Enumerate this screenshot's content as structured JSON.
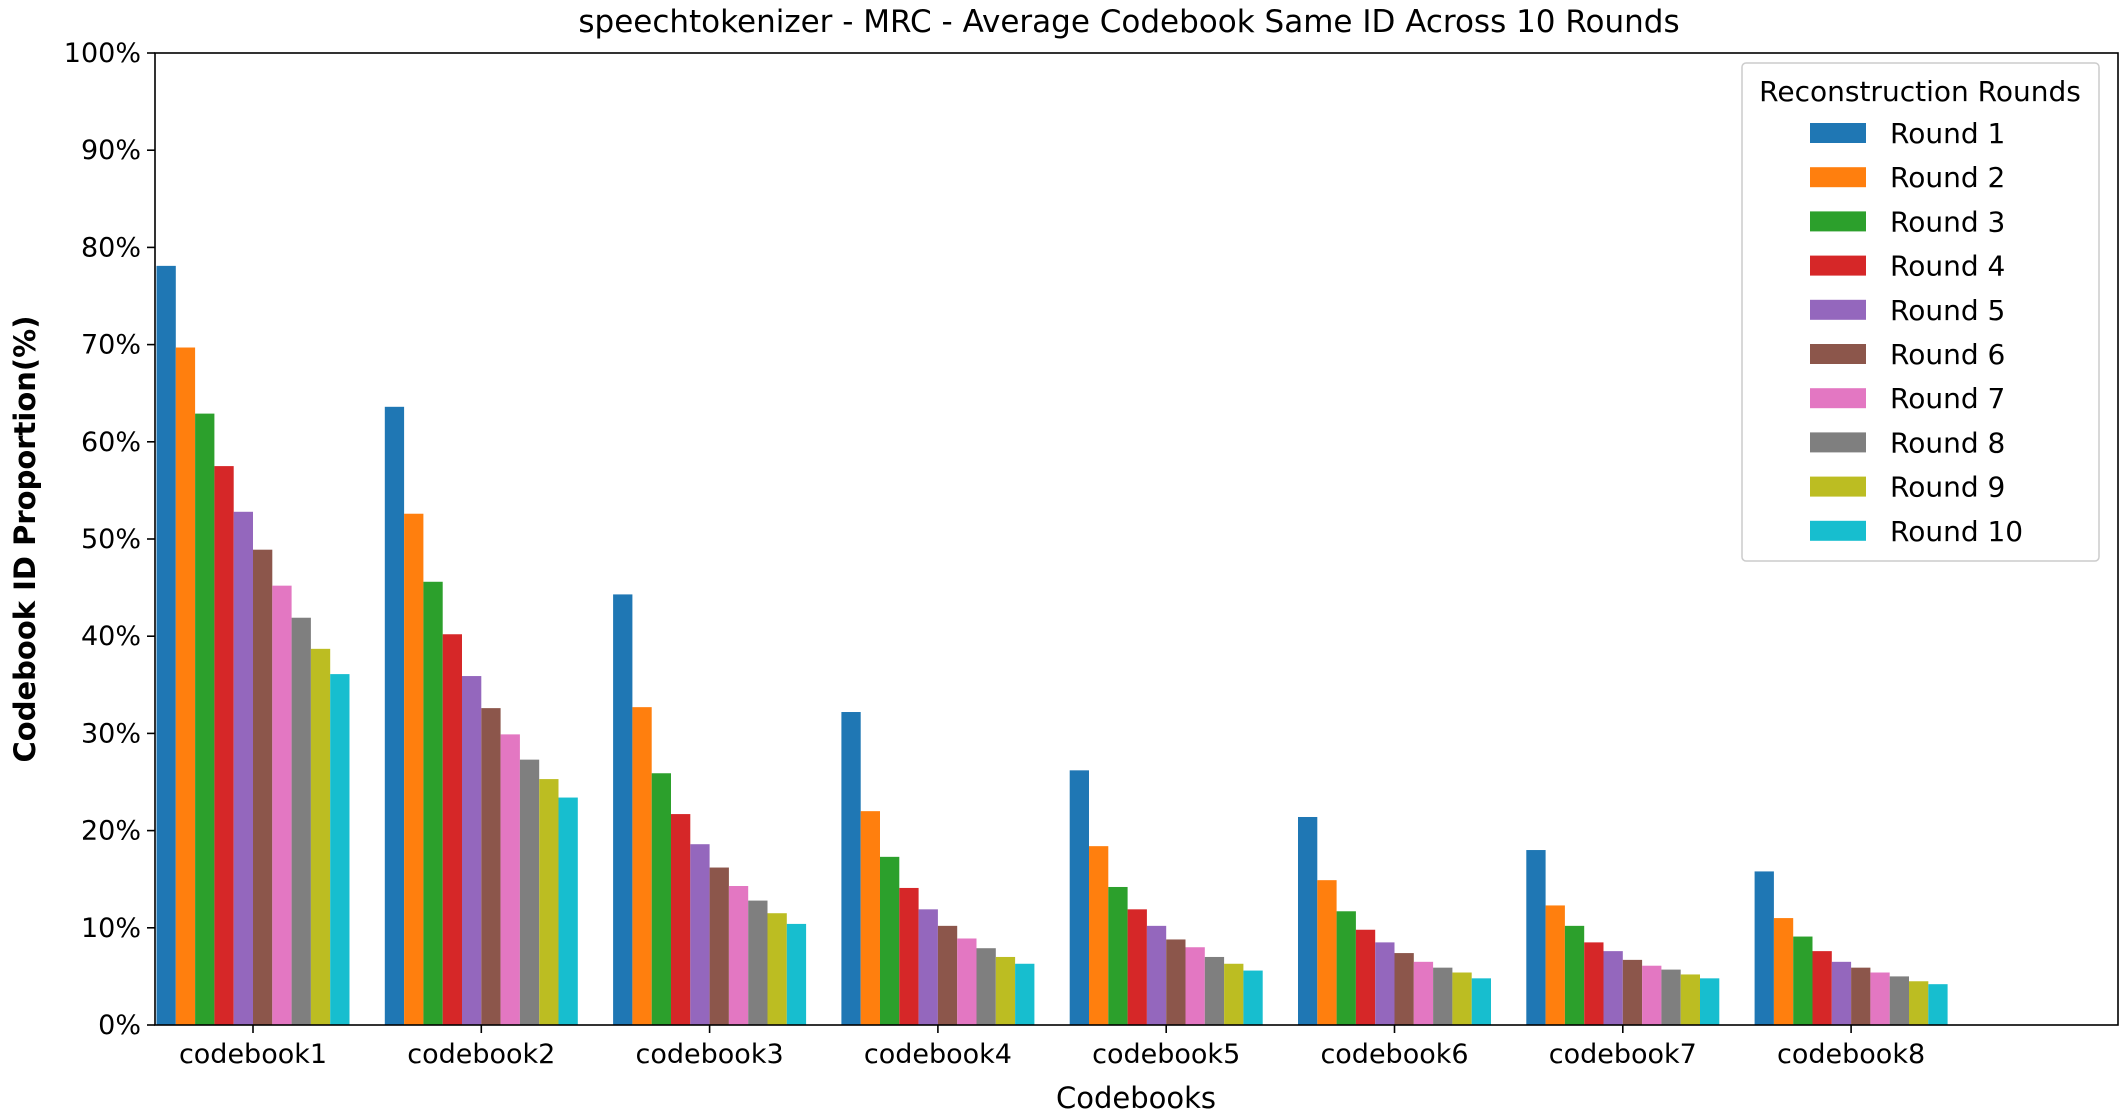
{
  "chart_data": {
    "type": "bar",
    "title": "speechtokenizer - MRC - Average Codebook Same ID Across 10 Rounds",
    "xlabel": "Codebooks",
    "ylabel": "Codebook ID Proportion(%)",
    "ylim": [
      0,
      100
    ],
    "yticks": [
      "0%",
      "10%",
      "20%",
      "30%",
      "40%",
      "50%",
      "60%",
      "70%",
      "80%",
      "90%",
      "100%"
    ],
    "grid": false,
    "legend_title": "Reconstruction Rounds",
    "legend_position": "top-right",
    "categories": [
      "codebook1",
      "codebook2",
      "codebook3",
      "codebook4",
      "codebook5",
      "codebook6",
      "codebook7",
      "codebook8"
    ],
    "series": [
      {
        "name": "Round 1",
        "color": "#1f77b4",
        "values": [
          78.1,
          63.6,
          44.3,
          32.2,
          26.2,
          21.4,
          18.0,
          15.8
        ]
      },
      {
        "name": "Round 2",
        "color": "#ff7f0e",
        "values": [
          69.7,
          52.6,
          32.7,
          22.0,
          18.4,
          14.9,
          12.3,
          11.0
        ]
      },
      {
        "name": "Round 3",
        "color": "#2ca02c",
        "values": [
          62.9,
          45.6,
          25.9,
          17.3,
          14.2,
          11.7,
          10.2,
          9.1
        ]
      },
      {
        "name": "Round 4",
        "color": "#d62728",
        "values": [
          57.5,
          40.2,
          21.7,
          14.1,
          11.9,
          9.8,
          8.5,
          7.6
        ]
      },
      {
        "name": "Round 5",
        "color": "#9467bd",
        "values": [
          52.8,
          35.9,
          18.6,
          11.9,
          10.2,
          8.5,
          7.6,
          6.5
        ]
      },
      {
        "name": "Round 6",
        "color": "#8c564b",
        "values": [
          48.9,
          32.6,
          16.2,
          10.2,
          8.8,
          7.4,
          6.7,
          5.9
        ]
      },
      {
        "name": "Round 7",
        "color": "#e377c2",
        "values": [
          45.2,
          29.9,
          14.3,
          8.9,
          8.0,
          6.5,
          6.1,
          5.4
        ]
      },
      {
        "name": "Round 8",
        "color": "#7f7f7f",
        "values": [
          41.9,
          27.3,
          12.8,
          7.9,
          7.0,
          5.9,
          5.7,
          5.0
        ]
      },
      {
        "name": "Round 9",
        "color": "#bcbd22",
        "values": [
          38.7,
          25.3,
          11.5,
          7.0,
          6.3,
          5.4,
          5.2,
          4.5
        ]
      },
      {
        "name": "Round 10",
        "color": "#17becf",
        "values": [
          36.1,
          23.4,
          10.4,
          6.3,
          5.6,
          4.8,
          4.8,
          4.2
        ]
      }
    ]
  }
}
